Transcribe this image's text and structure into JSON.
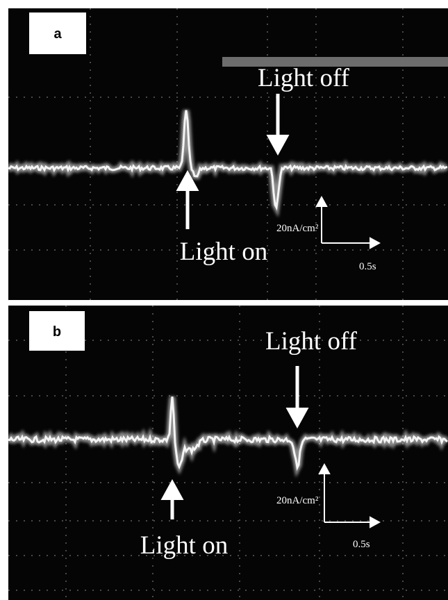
{
  "panels": [
    {
      "label": "a",
      "light_off": "Light off",
      "light_on": "Light on",
      "scale_current": "20nA/cm²",
      "scale_time": "0.5s"
    },
    {
      "label": "b",
      "light_off": "Light off",
      "light_on": "Light on",
      "scale_current": "20nA/cm²",
      "scale_time": "0.5s"
    }
  ]
}
